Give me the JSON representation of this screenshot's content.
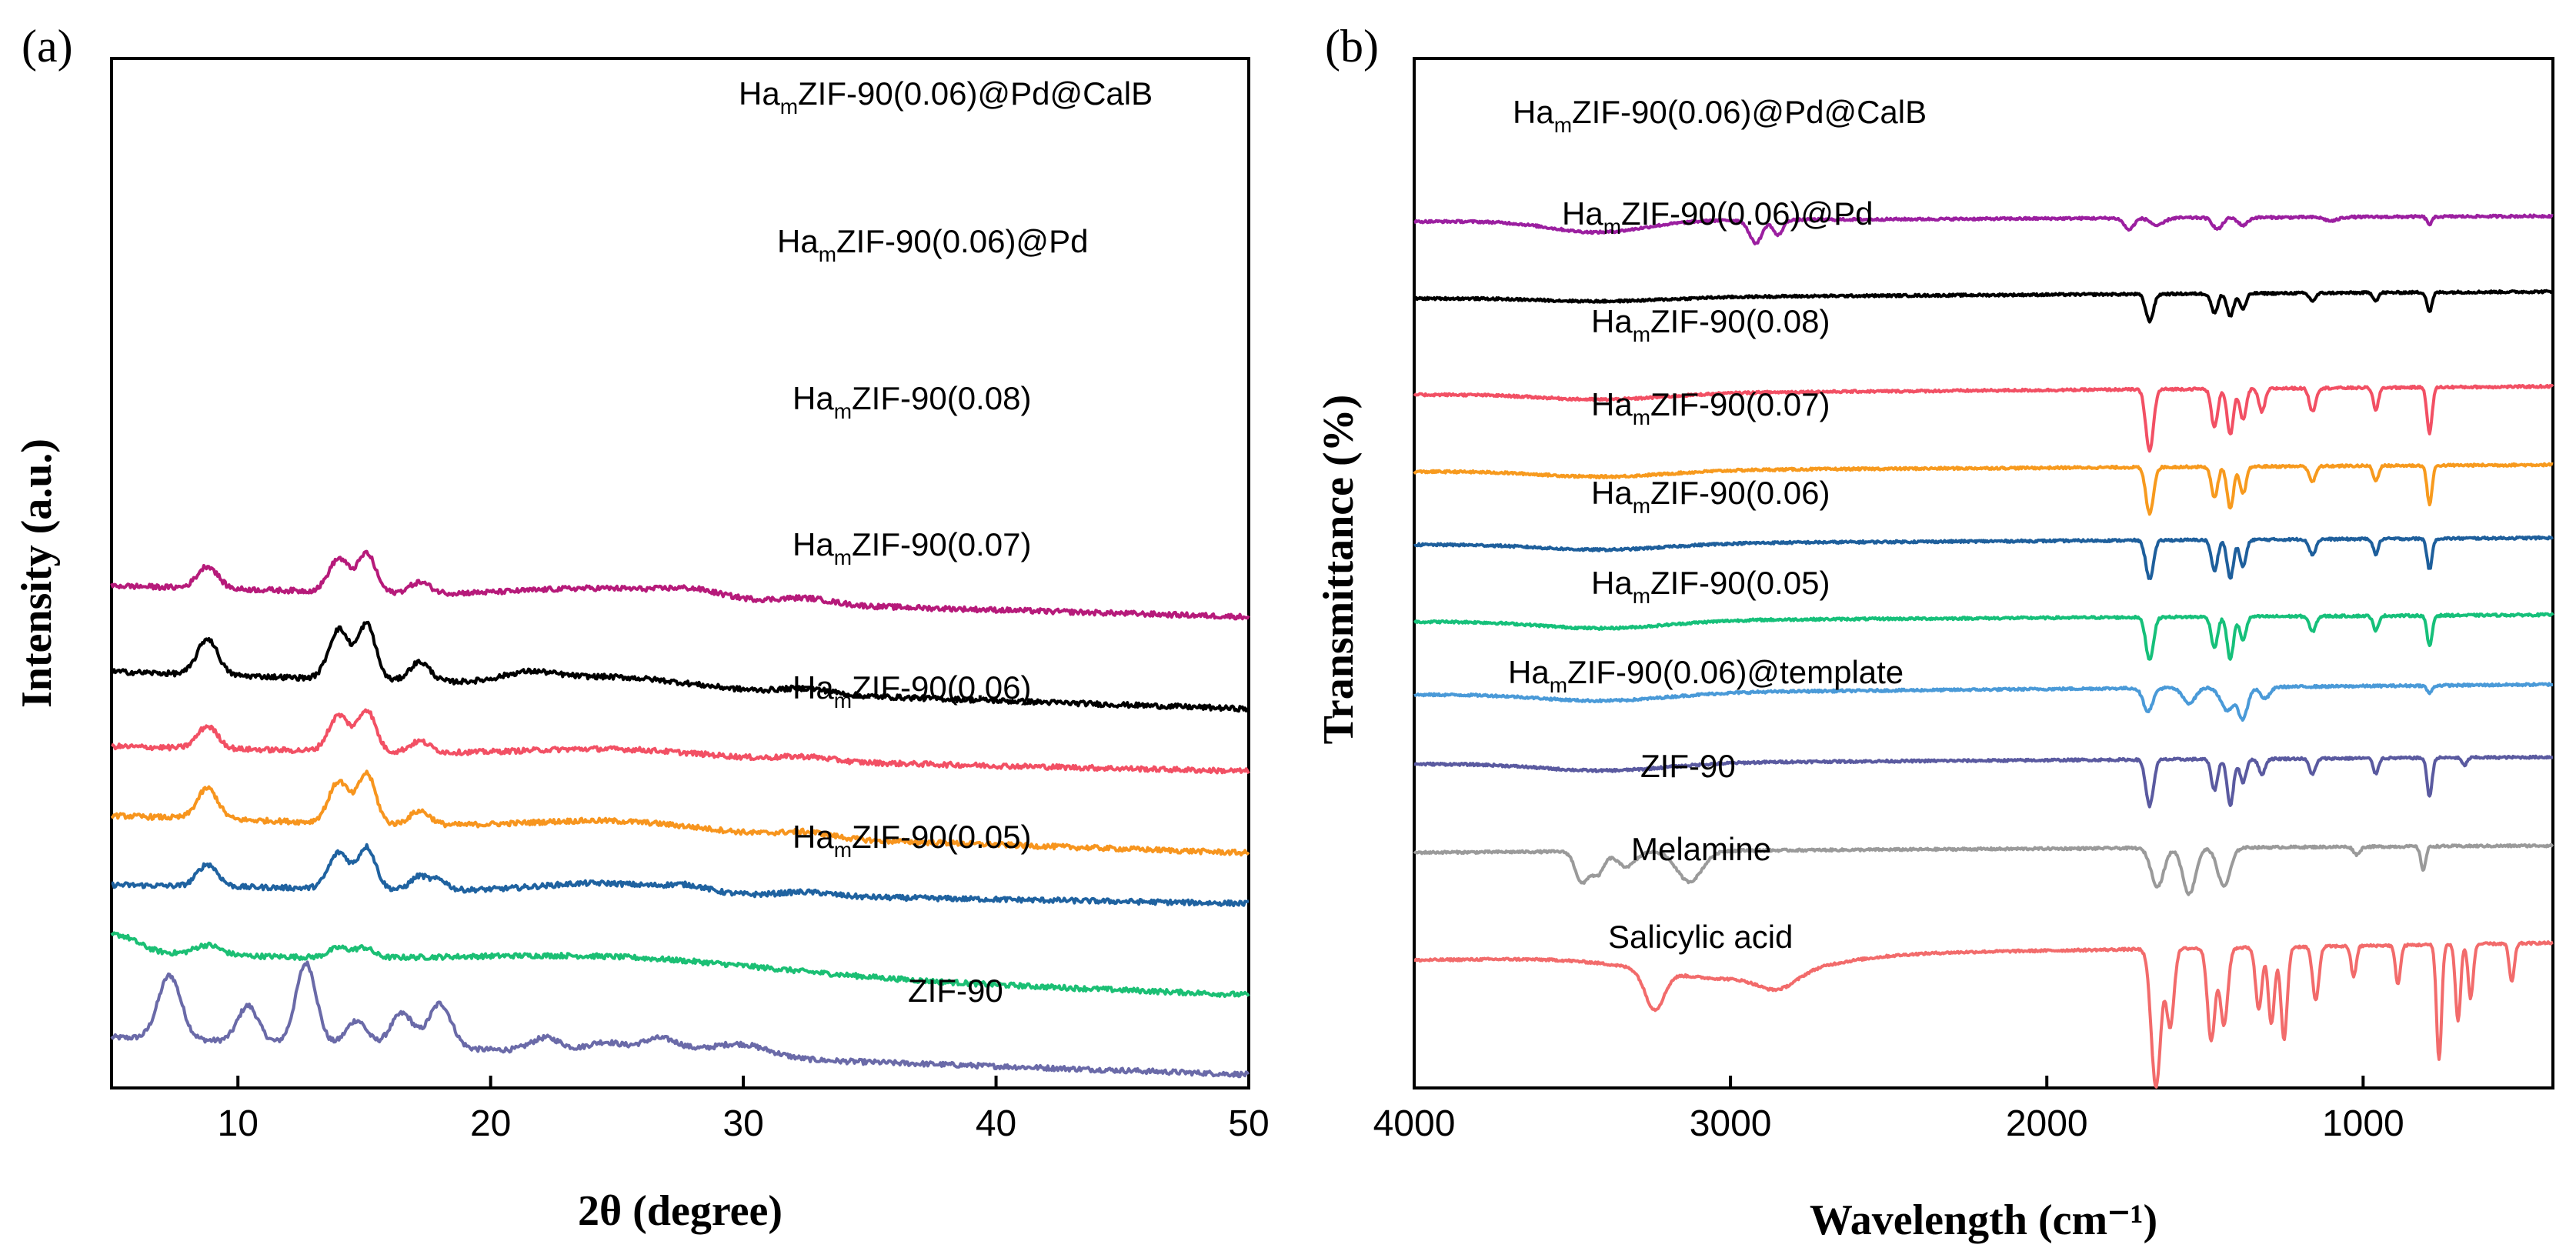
{
  "chart_data": [
    {
      "panel": "(a)",
      "type": "line",
      "xlabel": "2θ (degree)",
      "ylabel": "Intensity (a.u.)",
      "xlim": [
        5,
        50
      ],
      "xticks": [
        10,
        20,
        30,
        40,
        50
      ],
      "series": [
        {
          "name": "ZIF-90",
          "label_main": "ZIF-90",
          "label_sub": "",
          "label_tail": "",
          "color": "#6a6aa8",
          "baseline": 0,
          "slope": -0.03,
          "peaks": [
            [
              7.3,
              2.3,
              0.45
            ],
            [
              10.4,
              1.3,
              0.4
            ],
            [
              12.7,
              2.9,
              0.4
            ],
            [
              14.7,
              0.9,
              0.4
            ],
            [
              16.5,
              1.2,
              0.45
            ],
            [
              18.0,
              1.6,
              0.45
            ],
            [
              22.2,
              0.5,
              0.6
            ],
            [
              24.5,
              0.4,
              0.7
            ],
            [
              26.7,
              0.6,
              0.8
            ],
            [
              29.8,
              0.5,
              1.2
            ]
          ]
        },
        {
          "name": "HamZIF-90(0.05)",
          "label_main": "Ha",
          "label_sub": "m",
          "label_tail": "ZIF-90(0.05)",
          "color": "#1bbf74",
          "baseline": 3.1,
          "slope": -0.035,
          "peaks": [
            [
              5.2,
              0.6,
              0.8
            ],
            [
              8.8,
              0.35,
              0.5
            ],
            [
              14.0,
              0.35,
              0.4
            ],
            [
              15.0,
              0.35,
              0.35
            ],
            [
              25,
              0.5,
              6
            ]
          ]
        },
        {
          "name": "HamZIF-90(0.06)",
          "label_main": "Ha",
          "label_sub": "m",
          "label_tail": "ZIF-90(0.06)",
          "color": "#1f62a0",
          "baseline": 5.5,
          "slope": -0.015,
          "peaks": [
            [
              8.8,
              0.8,
              0.4
            ],
            [
              14.0,
              1.3,
              0.4
            ],
            [
              15.1,
              1.5,
              0.35
            ],
            [
              17.2,
              0.5,
              0.35
            ],
            [
              18.0,
              0.35,
              0.3
            ],
            [
              24.5,
              0.35,
              2.5
            ],
            [
              27.8,
              0.2,
              0.8
            ],
            [
              32.5,
              0.15,
              1
            ]
          ]
        },
        {
          "name": "HamZIF-90(0.07)",
          "label_main": "Ha",
          "label_sub": "m",
          "label_tail": "ZIF-90(0.07)",
          "color": "#f7951e",
          "baseline": 8.0,
          "slope": -0.03,
          "peaks": [
            [
              8.8,
              1.1,
              0.4
            ],
            [
              14.0,
              1.5,
              0.4
            ],
            [
              15.1,
              1.8,
              0.35
            ],
            [
              17.2,
              0.5,
              0.4
            ],
            [
              25,
              0.4,
              3.5
            ],
            [
              32.5,
              0.2,
              1
            ]
          ]
        },
        {
          "name": "HamZIF-90(0.08)",
          "label_main": "Ha",
          "label_sub": "m",
          "label_tail": "ZIF-90(0.08)",
          "color": "#f25064",
          "baseline": 10.5,
          "slope": -0.02,
          "peaks": [
            [
              8.8,
              0.8,
              0.4
            ],
            [
              14.0,
              1.3,
              0.4
            ],
            [
              15.1,
              1.5,
              0.35
            ],
            [
              17.2,
              0.4,
              0.4
            ],
            [
              25,
              0.3,
              3.5
            ],
            [
              32.5,
              0.15,
              1
            ]
          ]
        },
        {
          "name": "HamZIF-90(0.06)@Pd",
          "label_main": "Ha",
          "label_sub": "m",
          "label_tail": "ZIF-90(0.06)@Pd",
          "color": "#000000",
          "baseline": 13.2,
          "slope": -0.03,
          "peaks": [
            [
              8.8,
              1.3,
              0.4
            ],
            [
              14.0,
              1.8,
              0.4
            ],
            [
              15.1,
              2.0,
              0.35
            ],
            [
              17.2,
              0.7,
              0.4
            ],
            [
              21.5,
              0.3,
              1
            ],
            [
              25,
              0.4,
              3
            ],
            [
              32.5,
              0.2,
              1
            ]
          ]
        },
        {
          "name": "HamZIF-90(0.06)@Pd@CalB",
          "label_main": "Ha",
          "label_sub": "m",
          "label_tail": "ZIF-90(0.06)@Pd@CalB",
          "color": "#b61a7a",
          "baseline": 16.3,
          "slope": -0.025,
          "peaks": [
            [
              8.8,
              0.8,
              0.4
            ],
            [
              14.0,
              1.2,
              0.4
            ],
            [
              15.1,
              1.4,
              0.35
            ],
            [
              17.2,
              0.4,
              0.4
            ],
            [
              25,
              0.4,
              3.5
            ],
            [
              28,
              0.2,
              1
            ],
            [
              32.5,
              0.2,
              1
            ]
          ]
        }
      ]
    },
    {
      "panel": "(b)",
      "type": "line",
      "xlabel": "Wavelength (cm⁻¹)",
      "ylabel": "Transmittance (%)",
      "xlim": [
        4000,
        400
      ],
      "xticks": [
        4000,
        3000,
        2000,
        1000
      ],
      "series": [
        {
          "name": "Salicylic acid",
          "label_main": "Salicylic acid",
          "label_sub": "",
          "label_tail": "",
          "color": "#f26b6b",
          "baseline": 0,
          "slope": 0.00025,
          "bands": [
            [
              3240,
              0.5,
              30
            ],
            [
              3000,
              0.3,
              250
            ],
            [
              2850,
              0.2,
              60
            ],
            [
              1655,
              1.8,
              15
            ],
            [
              1610,
              1.0,
              12
            ],
            [
              1480,
              1.2,
              12
            ],
            [
              1440,
              1.0,
              12
            ],
            [
              1330,
              0.8,
              10
            ],
            [
              1290,
              1.0,
              10
            ],
            [
              1250,
              1.2,
              10
            ],
            [
              1150,
              0.7,
              10
            ],
            [
              1030,
              0.4,
              8
            ],
            [
              890,
              0.5,
              8
            ],
            [
              760,
              1.5,
              8
            ],
            [
              700,
              1.0,
              8
            ],
            [
              660,
              0.7,
              8
            ],
            [
              530,
              0.5,
              8
            ]
          ]
        },
        {
          "name": "Melamine",
          "label_main": "Melamine",
          "label_sub": "",
          "label_tail": "",
          "color": "#9a9a9a",
          "baseline": 1.4,
          "slope": 0.0001,
          "bands": [
            [
              3470,
              0.4,
              20
            ],
            [
              3420,
              0.3,
              20
            ],
            [
              3330,
              0.2,
              30
            ],
            [
              3130,
              0.4,
              40
            ],
            [
              1650,
              0.5,
              20
            ],
            [
              1550,
              0.6,
              20
            ],
            [
              1440,
              0.5,
              20
            ],
            [
              1020,
              0.1,
              10
            ],
            [
              810,
              0.3,
              8
            ]
          ]
        },
        {
          "name": "ZIF-90",
          "label_main": "ZIF-90",
          "label_sub": "",
          "label_tail": "",
          "color": "#5a5aa0",
          "baseline": 2.55,
          "slope": 0.0001,
          "bands": [
            [
              3400,
              0.1,
              200
            ],
            [
              1675,
              0.6,
              12
            ],
            [
              1470,
              0.4,
              10
            ],
            [
              1420,
              0.6,
              10
            ],
            [
              1380,
              0.3,
              10
            ],
            [
              1320,
              0.2,
              10
            ],
            [
              1160,
              0.2,
              10
            ],
            [
              960,
              0.2,
              8
            ],
            [
              790,
              0.5,
              8
            ],
            [
              680,
              0.1,
              8
            ]
          ]
        },
        {
          "name": "HamZIF-90(0.06)@template",
          "label_main": "Ha",
          "label_sub": "m",
          "label_tail": "ZIF-90(0.06)@template",
          "color": "#4a9ad8",
          "baseline": 3.45,
          "slope": 0.00015,
          "bands": [
            [
              3400,
              0.1,
              200
            ],
            [
              1680,
              0.3,
              15
            ],
            [
              1550,
              0.2,
              20
            ],
            [
              1430,
              0.3,
              20
            ],
            [
              1380,
              0.4,
              15
            ],
            [
              1310,
              0.15,
              15
            ],
            [
              790,
              0.1,
              8
            ]
          ]
        },
        {
          "name": "HamZIF-90(0.05)",
          "label_main": "Ha",
          "label_sub": "m",
          "label_tail": "ZIF-90(0.05)",
          "color": "#16c07a",
          "baseline": 4.4,
          "slope": 0.0001,
          "bands": [
            [
              3400,
              0.1,
              200
            ],
            [
              1675,
              0.55,
              12
            ],
            [
              1470,
              0.4,
              10
            ],
            [
              1420,
              0.55,
              10
            ],
            [
              1380,
              0.3,
              10
            ],
            [
              1160,
              0.2,
              10
            ],
            [
              960,
              0.2,
              8
            ],
            [
              790,
              0.4,
              8
            ]
          ]
        },
        {
          "name": "HamZIF-90(0.06)",
          "label_main": "Ha",
          "label_sub": "m",
          "label_tail": "ZIF-90(0.06)",
          "color": "#1e5f9c",
          "baseline": 5.4,
          "slope": 0.0001,
          "bands": [
            [
              3400,
              0.08,
              200
            ],
            [
              1675,
              0.5,
              12
            ],
            [
              1470,
              0.4,
              10
            ],
            [
              1420,
              0.5,
              10
            ],
            [
              1380,
              0.35,
              10
            ],
            [
              1160,
              0.2,
              10
            ],
            [
              960,
              0.2,
              8
            ],
            [
              790,
              0.4,
              8
            ]
          ]
        },
        {
          "name": "HamZIF-90(0.07)",
          "label_main": "Ha",
          "label_sub": "m",
          "label_tail": "ZIF-90(0.07)",
          "color": "#f79a1e",
          "baseline": 6.35,
          "slope": 0.0001,
          "bands": [
            [
              3400,
              0.08,
              200
            ],
            [
              1675,
              0.6,
              12
            ],
            [
              1470,
              0.4,
              10
            ],
            [
              1420,
              0.55,
              10
            ],
            [
              1380,
              0.35,
              10
            ],
            [
              1160,
              0.2,
              10
            ],
            [
              960,
              0.2,
              8
            ],
            [
              790,
              0.5,
              8
            ]
          ]
        },
        {
          "name": "HamZIF-90(0.08)",
          "label_main": "Ha",
          "label_sub": "m",
          "label_tail": "ZIF-90(0.08)",
          "color": "#f25064",
          "baseline": 7.35,
          "slope": 0.00012,
          "bands": [
            [
              3400,
              0.08,
              200
            ],
            [
              1675,
              0.8,
              12
            ],
            [
              1470,
              0.5,
              10
            ],
            [
              1420,
              0.6,
              10
            ],
            [
              1380,
              0.4,
              10
            ],
            [
              1320,
              0.3,
              10
            ],
            [
              1160,
              0.3,
              10
            ],
            [
              960,
              0.3,
              8
            ],
            [
              790,
              0.6,
              8
            ]
          ]
        },
        {
          "name": "HamZIF-90(0.06)@Pd",
          "label_main": "Ha",
          "label_sub": "m",
          "label_tail": "ZIF-90(0.06)@Pd",
          "color": "#000000",
          "baseline": 8.6,
          "slope": 0.0001,
          "bands": [
            [
              3400,
              0.05,
              200
            ],
            [
              1675,
              0.35,
              12
            ],
            [
              1470,
              0.25,
              10
            ],
            [
              1420,
              0.3,
              10
            ],
            [
              1380,
              0.2,
              10
            ],
            [
              1160,
              0.1,
              10
            ],
            [
              960,
              0.1,
              8
            ],
            [
              790,
              0.25,
              8
            ]
          ]
        },
        {
          "name": "HamZIF-90(0.06)@Pd@CalB",
          "label_main": "Ha",
          "label_sub": "m",
          "label_tail": "ZIF-90(0.06)@Pd@CalB",
          "color": "#9b1fa0",
          "baseline": 9.6,
          "slope": 8e-05,
          "bands": [
            [
              3420,
              0.15,
              150
            ],
            [
              2920,
              0.3,
              20
            ],
            [
              2850,
              0.2,
              15
            ],
            [
              1740,
              0.15,
              15
            ],
            [
              1650,
              0.1,
              20
            ],
            [
              1460,
              0.15,
              15
            ],
            [
              1380,
              0.1,
              15
            ],
            [
              1100,
              0.05,
              20
            ],
            [
              790,
              0.1,
              8
            ]
          ]
        }
      ]
    }
  ]
}
